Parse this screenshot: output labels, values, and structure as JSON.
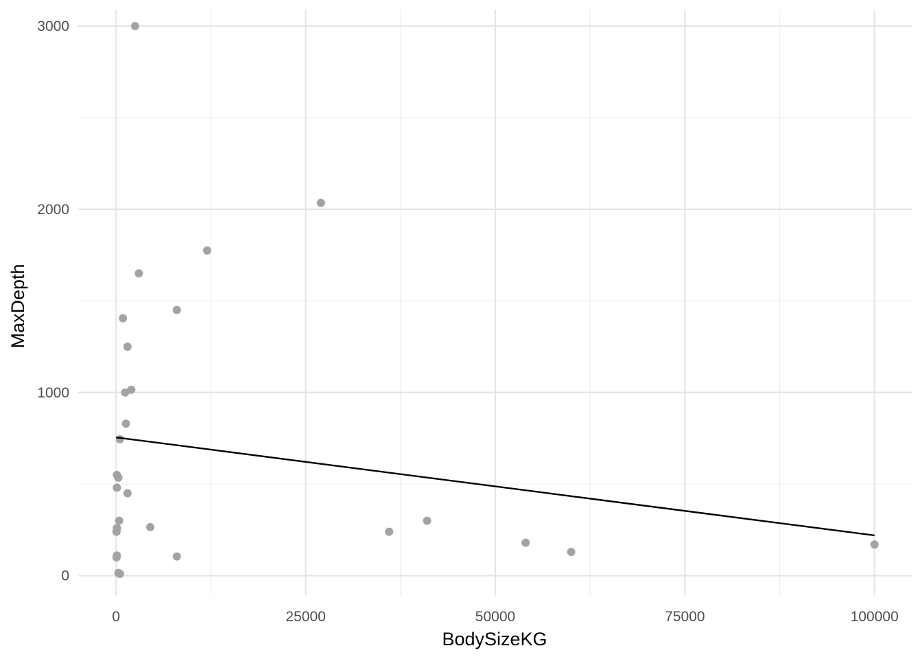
{
  "chart_data": {
    "type": "scatter",
    "xlabel": "BodySizeKG",
    "ylabel": "MaxDepth",
    "xlim": [
      -5000,
      105000
    ],
    "ylim": [
      -110,
      3090
    ],
    "x_ticks": [
      0,
      25000,
      50000,
      75000,
      100000
    ],
    "y_ticks": [
      0,
      1000,
      2000,
      3000
    ],
    "x_tick_labels": [
      "0",
      "25000",
      "50000",
      "75000",
      "100000"
    ],
    "y_tick_labels": [
      "0",
      "1000",
      "2000",
      "3000"
    ],
    "grid": true,
    "point_color": "#a3a3a3",
    "line_color": "#000000",
    "points": [
      {
        "x": 2500,
        "y": 3000
      },
      {
        "x": 27000,
        "y": 2035
      },
      {
        "x": 12000,
        "y": 1775
      },
      {
        "x": 3000,
        "y": 1650
      },
      {
        "x": 8000,
        "y": 1450
      },
      {
        "x": 900,
        "y": 1405
      },
      {
        "x": 1500,
        "y": 1250
      },
      {
        "x": 2000,
        "y": 1015
      },
      {
        "x": 1200,
        "y": 1000
      },
      {
        "x": 1300,
        "y": 830
      },
      {
        "x": 500,
        "y": 745
      },
      {
        "x": 100,
        "y": 550
      },
      {
        "x": 300,
        "y": 535
      },
      {
        "x": 100,
        "y": 480
      },
      {
        "x": 1500,
        "y": 450
      },
      {
        "x": 400,
        "y": 300
      },
      {
        "x": 100,
        "y": 260
      },
      {
        "x": 50,
        "y": 240
      },
      {
        "x": 4500,
        "y": 265
      },
      {
        "x": 8000,
        "y": 105
      },
      {
        "x": 100,
        "y": 110
      },
      {
        "x": 50,
        "y": 100
      },
      {
        "x": 300,
        "y": 15
      },
      {
        "x": 500,
        "y": 10
      },
      {
        "x": 36000,
        "y": 240
      },
      {
        "x": 41000,
        "y": 300
      },
      {
        "x": 54000,
        "y": 180
      },
      {
        "x": 60000,
        "y": 130
      },
      {
        "x": 100000,
        "y": 170
      }
    ],
    "trend_line": {
      "x": [
        0,
        100000
      ],
      "y": [
        755,
        220
      ]
    }
  }
}
